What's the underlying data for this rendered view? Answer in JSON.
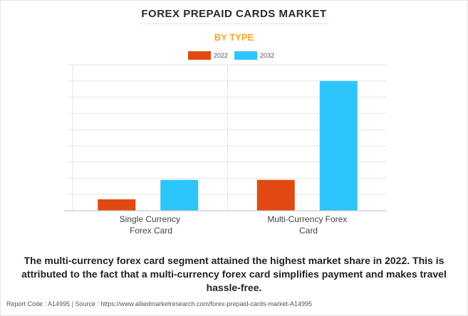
{
  "title": "FOREX PREPAID CARDS MARKET",
  "subtitle": "BY TYPE",
  "colors": {
    "subtitle": "#f5a623",
    "series_2022": "#e04a12",
    "series_2032": "#2ec5fb"
  },
  "chart_data": {
    "type": "bar",
    "categories": [
      {
        "line1": "Single Currency",
        "line2": "Forex Card"
      },
      {
        "line1": "Multi-Currency Forex",
        "line2": "Card"
      }
    ],
    "series": [
      {
        "name": "2022",
        "values": [
          0.7,
          1.9
        ]
      },
      {
        "name": "2032",
        "values": [
          1.9,
          8.0
        ]
      }
    ],
    "ylim": [
      0,
      9
    ],
    "grid": true,
    "legend_position": "top-center",
    "y_tick_labels_shown": false
  },
  "footnote": "The multi-currency forex card segment attained the highest market share in 2022. This is attributed to the fact that a multi-currency forex card simplifies payment and makes travel hassle-free.",
  "report_line": "Report Code : A14995  |  Source : https://www.alliedmarketresearch.com/forex-prepaid-cards-market-A14995"
}
